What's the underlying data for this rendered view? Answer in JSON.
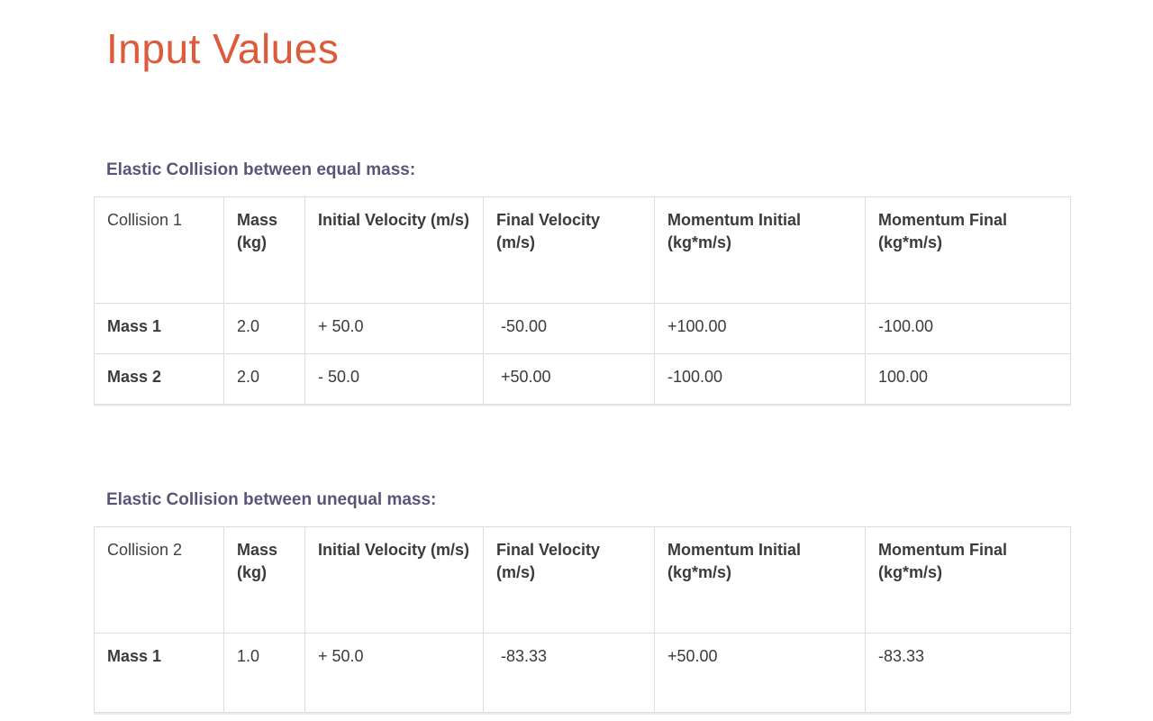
{
  "page": {
    "title": "Input Values"
  },
  "colors": {
    "title_accent": "#dd5a3b",
    "section_heading": "#5c5478",
    "table_text": "#3b3b3b",
    "table_border": "#dddddd",
    "background": "#ffffff"
  },
  "sections": [
    {
      "heading": "Elastic Collision between equal mass:",
      "table": {
        "columns": [
          "Collision 1",
          "Mass (kg)",
          "Initial Velocity (m/s)",
          "Final Velocity (m/s)",
          "Momentum Initial (kg*m/s)",
          "Momentum Final (kg*m/s)"
        ],
        "rows": [
          {
            "label": "Mass 1",
            "values": [
              "2.0",
              "+ 50.0",
              " -50.00",
              "+100.00",
              "-100.00"
            ]
          },
          {
            "label": "Mass 2",
            "values": [
              "2.0",
              "- 50.0",
              " +50.00",
              "-100.00",
              "100.00"
            ]
          }
        ]
      }
    },
    {
      "heading": "Elastic Collision between unequal mass:",
      "table": {
        "columns": [
          "Collision 2",
          "Mass (kg)",
          "Initial Velocity (m/s)",
          "Final Velocity (m/s)",
          "Momentum Initial (kg*m/s)",
          "Momentum Final (kg*m/s)"
        ],
        "rows": [
          {
            "label": "Mass 1",
            "values": [
              "1.0",
              "+ 50.0",
              " -83.33",
              "+50.00",
              "-83.33"
            ]
          }
        ]
      }
    }
  ]
}
